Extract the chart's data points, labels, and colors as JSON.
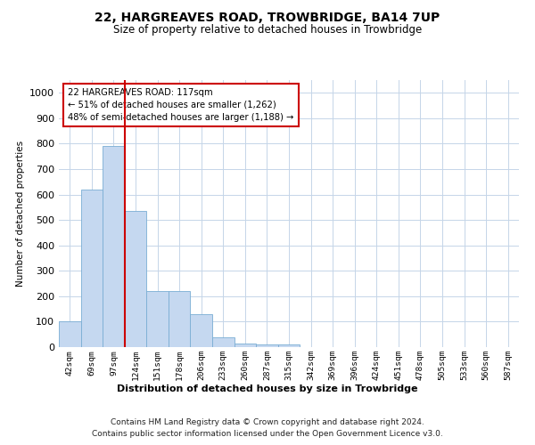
{
  "title": "22, HARGREAVES ROAD, TROWBRIDGE, BA14 7UP",
  "subtitle": "Size of property relative to detached houses in Trowbridge",
  "xlabel": "Distribution of detached houses by size in Trowbridge",
  "ylabel": "Number of detached properties",
  "categories": [
    "42sqm",
    "69sqm",
    "97sqm",
    "124sqm",
    "151sqm",
    "178sqm",
    "206sqm",
    "233sqm",
    "260sqm",
    "287sqm",
    "315sqm",
    "342sqm",
    "369sqm",
    "396sqm",
    "424sqm",
    "451sqm",
    "478sqm",
    "505sqm",
    "533sqm",
    "560sqm",
    "587sqm"
  ],
  "values": [
    100,
    620,
    790,
    535,
    220,
    220,
    130,
    40,
    15,
    10,
    10,
    0,
    0,
    0,
    0,
    0,
    0,
    0,
    0,
    0,
    0
  ],
  "bar_color": "#c5d8f0",
  "bar_edge_color": "#7aadd4",
  "highlight_line_color": "#cc0000",
  "highlight_bar_index": 3,
  "annotation_text": "22 HARGREAVES ROAD: 117sqm\n← 51% of detached houses are smaller (1,262)\n48% of semi-detached houses are larger (1,188) →",
  "annotation_box_color": "#cc0000",
  "ylim": [
    0,
    1050
  ],
  "yticks": [
    0,
    100,
    200,
    300,
    400,
    500,
    600,
    700,
    800,
    900,
    1000
  ],
  "footer_line1": "Contains HM Land Registry data © Crown copyright and database right 2024.",
  "footer_line2": "Contains public sector information licensed under the Open Government Licence v3.0.",
  "bg_color": "#ffffff",
  "grid_color": "#c5d5e8"
}
